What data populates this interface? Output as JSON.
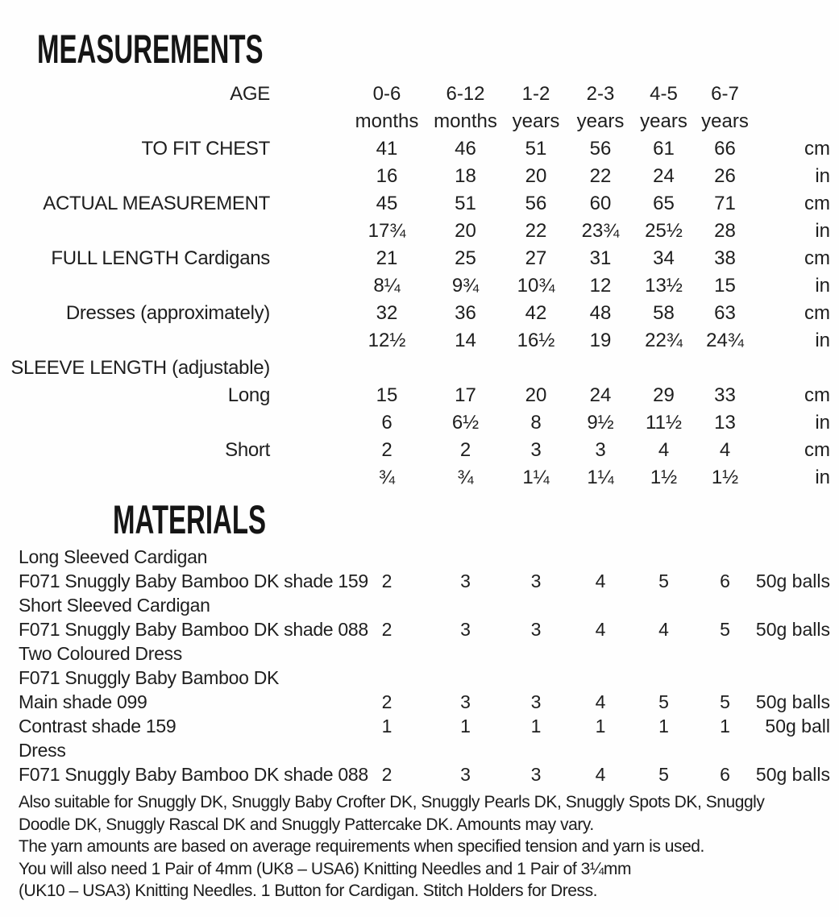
{
  "measurements": {
    "title": "MEASUREMENTS",
    "age_label": "AGE",
    "unit_cm": "cm",
    "unit_in": "in",
    "age_columns": [
      {
        "range": "0-6",
        "unit": "months"
      },
      {
        "range": "6-12",
        "unit": "months"
      },
      {
        "range": "1-2",
        "unit": "years"
      },
      {
        "range": "2-3",
        "unit": "years"
      },
      {
        "range": "4-5",
        "unit": "years"
      },
      {
        "range": "6-7",
        "unit": "years"
      }
    ],
    "rows": [
      {
        "label": "TO FIT CHEST",
        "cm": [
          "41",
          "46",
          "51",
          "56",
          "61",
          "66"
        ],
        "in": [
          "16",
          "18",
          "20",
          "22",
          "24",
          "26"
        ]
      },
      {
        "label": "ACTUAL MEASUREMENT",
        "cm": [
          "45",
          "51",
          "56",
          "60",
          "65",
          "71"
        ],
        "in": [
          "17¾",
          "20",
          "22",
          "23¾",
          "25½",
          "28"
        ]
      },
      {
        "label": "FULL LENGTH Cardigans",
        "cm": [
          "21",
          "25",
          "27",
          "31",
          "34",
          "38"
        ],
        "in": [
          "8¼",
          "9¾",
          "10¾",
          "12",
          "13½",
          "15"
        ]
      },
      {
        "label": "Dresses (approximately)",
        "cm": [
          "32",
          "36",
          "42",
          "48",
          "58",
          "63"
        ],
        "in": [
          "12½",
          "14",
          "16½",
          "19",
          "22¾",
          "24¾"
        ]
      },
      {
        "label": "SLEEVE LENGTH (adjustable)"
      },
      {
        "label": "Long",
        "cm": [
          "15",
          "17",
          "20",
          "24",
          "29",
          "33"
        ],
        "in": [
          "6",
          "6½",
          "8",
          "9½",
          "11½",
          "13"
        ]
      },
      {
        "label": "Short",
        "cm": [
          "2",
          "2",
          "3",
          "3",
          "4",
          "4"
        ],
        "in": [
          "¾",
          "¾",
          "1¼",
          "1¼",
          "1½",
          "1½"
        ]
      }
    ]
  },
  "materials": {
    "title": "MATERIALS",
    "rows": [
      {
        "label": "Long Sleeved Cardigan"
      },
      {
        "label": "F071 Snuggly Baby Bamboo DK shade 159",
        "values": [
          "2",
          "3",
          "3",
          "4",
          "5",
          "6"
        ],
        "unit": "50g balls"
      },
      {
        "label": "Short Sleeved Cardigan"
      },
      {
        "label": "F071 Snuggly Baby Bamboo DK shade 088",
        "values": [
          "2",
          "3",
          "3",
          "4",
          "4",
          "5"
        ],
        "unit": "50g balls"
      },
      {
        "label": "Two Coloured Dress"
      },
      {
        "label": "F071 Snuggly Baby Bamboo DK"
      },
      {
        "label": "Main shade 099",
        "values": [
          "2",
          "3",
          "3",
          "4",
          "5",
          "5"
        ],
        "unit": "50g balls"
      },
      {
        "label": "Contrast shade 159",
        "values": [
          "1",
          "1",
          "1",
          "1",
          "1",
          "1"
        ],
        "unit": "50g ball"
      },
      {
        "label": "Dress"
      },
      {
        "label": "F071 Snuggly Baby Bamboo DK shade 088",
        "values": [
          "2",
          "3",
          "3",
          "4",
          "5",
          "6"
        ],
        "unit": "50g balls"
      }
    ]
  },
  "notes": {
    "lines": [
      "Also suitable for Snuggly DK, Snuggly Baby Crofter DK, Snuggly Pearls DK, Snuggly Spots DK, Snuggly",
      "Doodle DK, Snuggly Rascal DK and Snuggly Pattercake DK. Amounts may vary.",
      "The yarn amounts are based on average requirements when specified tension and yarn is used.",
      "You will also need 1 Pair of 4mm (UK8 – USA6) Knitting Needles and 1 Pair of 3¼mm",
      "(UK10 – USA3) Knitting Needles. 1 Button for Cardigan. Stitch Holders for Dress."
    ]
  }
}
